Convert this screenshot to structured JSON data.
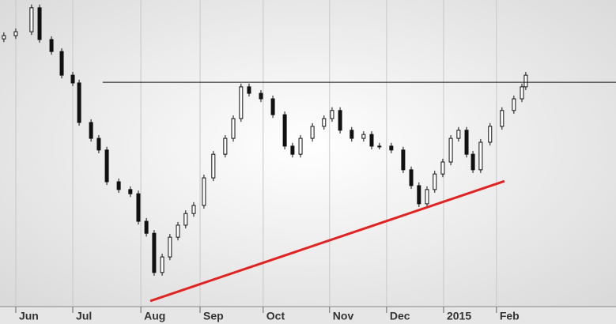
{
  "chart_data": {
    "type": "candlestick",
    "xlim": [
      0,
      222.6
    ],
    "ylim": [
      0,
      100
    ],
    "xticks": [
      {
        "value": 5.7,
        "label": "Jun"
      },
      {
        "value": 26.3,
        "label": "Jul"
      },
      {
        "value": 50.9,
        "label": "Aug"
      },
      {
        "value": 72.3,
        "label": "Sep"
      },
      {
        "value": 95.1,
        "label": "Oct"
      },
      {
        "value": 119.1,
        "label": "Nov"
      },
      {
        "value": 139.7,
        "label": "Dec"
      },
      {
        "value": 160.3,
        "label": "2015"
      },
      {
        "value": 179.4,
        "label": "Feb"
      }
    ],
    "grid": true,
    "color": "#111111",
    "x": [
      1.4,
      5.7,
      11.4,
      14.3,
      18.6,
      22.3,
      26.3,
      28.6,
      32.9,
      35.7,
      38.6,
      42.9,
      47.1,
      50.0,
      52.9,
      55.7,
      58.6,
      61.4,
      64.3,
      67.1,
      70.0,
      73.7,
      77.1,
      81.4,
      84.3,
      87.1,
      90.0,
      94.3,
      98.6,
      102.9,
      105.7,
      108.6,
      112.9,
      117.1,
      120.0,
      122.9,
      127.1,
      131.4,
      134.3,
      137.1,
      141.4,
      145.7,
      148.6,
      151.4,
      154.3,
      157.1,
      160.0,
      162.9,
      165.7,
      168.6,
      170.9,
      173.7,
      177.1,
      181.4,
      185.7,
      188.6,
      190.0
    ],
    "close": [
      89.0,
      90.2,
      97.6,
      87.8,
      84.1,
      76.8,
      74.4,
      62.2,
      57.3,
      53.7,
      43.9,
      41.5,
      40.2,
      31.7,
      28.0,
      15.9,
      20.7,
      26.8,
      30.5,
      34.1,
      36.6,
      45.1,
      52.4,
      57.3,
      63.4,
      73.2,
      71.2,
      69.5,
      64.6,
      54.9,
      52.4,
      57.3,
      61.0,
      63.4,
      65.9,
      59.8,
      57.3,
      58.5,
      54.9,
      54.9,
      53.7,
      47.6,
      42.7,
      37.1,
      41.5,
      46.3,
      50.0,
      57.3,
      59.8,
      52.4,
      47.6,
      56.1,
      61.0,
      65.9,
      69.5,
      73.2,
      76.8
    ],
    "open": [
      88.0,
      89.0,
      90.2,
      97.6,
      87.8,
      84.1,
      76.8,
      74.4,
      62.2,
      57.3,
      53.7,
      43.9,
      41.5,
      40.2,
      31.7,
      28.0,
      15.9,
      20.7,
      26.8,
      30.5,
      34.1,
      36.6,
      45.1,
      52.4,
      57.3,
      63.4,
      73.2,
      71.2,
      69.5,
      64.6,
      54.9,
      52.4,
      57.3,
      61.0,
      63.4,
      65.9,
      59.8,
      57.3,
      58.5,
      54.9,
      54.9,
      53.7,
      47.6,
      42.7,
      37.1,
      41.5,
      46.3,
      50.0,
      57.3,
      59.8,
      52.4,
      47.6,
      56.1,
      61.0,
      65.9,
      69.5,
      73.2
    ],
    "high": [
      90.0,
      91.2,
      98.6,
      98.6,
      88.8,
      85.1,
      77.8,
      75.4,
      63.2,
      58.3,
      54.7,
      44.9,
      42.5,
      41.2,
      32.7,
      29.0,
      21.7,
      27.8,
      31.5,
      35.1,
      37.6,
      46.1,
      53.4,
      58.3,
      64.4,
      74.2,
      74.2,
      72.2,
      70.5,
      65.6,
      55.9,
      58.3,
      62.0,
      64.4,
      66.9,
      66.9,
      60.8,
      59.5,
      59.5,
      55.9,
      55.9,
      54.7,
      48.6,
      43.7,
      42.5,
      47.3,
      51.0,
      58.3,
      60.8,
      60.8,
      53.4,
      57.1,
      62.0,
      66.9,
      70.5,
      74.2,
      77.8
    ],
    "low": [
      87.0,
      88.0,
      89.2,
      86.8,
      83.1,
      75.8,
      73.4,
      61.2,
      56.3,
      52.7,
      42.9,
      40.5,
      39.2,
      30.7,
      27.0,
      14.9,
      14.9,
      19.7,
      25.8,
      29.5,
      33.1,
      35.6,
      44.1,
      51.4,
      56.3,
      62.4,
      70.2,
      68.5,
      63.6,
      53.9,
      51.4,
      51.4,
      56.3,
      60.0,
      62.4,
      58.8,
      56.3,
      56.3,
      53.9,
      53.9,
      52.7,
      46.6,
      41.7,
      36.1,
      36.1,
      40.5,
      45.3,
      49.0,
      56.3,
      51.4,
      46.6,
      46.6,
      55.1,
      60.0,
      64.9,
      68.5,
      72.2
    ],
    "lines": [
      {
        "x": [
          37.1,
          222.6
        ],
        "y": [
          74.6,
          74.6
        ],
        "color": "#111111"
      },
      {
        "x": [
          54.3,
          182.3
        ],
        "y": [
          7.1,
          44.1
        ],
        "color": "#e02424"
      }
    ]
  }
}
